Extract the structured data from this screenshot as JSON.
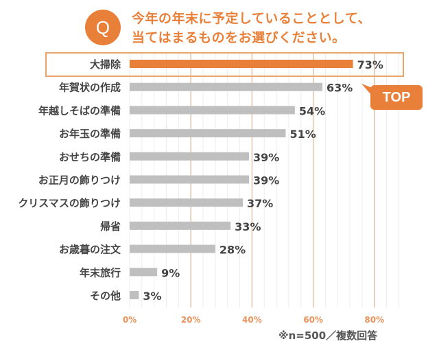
{
  "header": {
    "badge": "Q",
    "title_line1": "今年の年末に予定していることとして、",
    "title_line2": "当てはまるものをお選びください。"
  },
  "highlight": {
    "badge_label": "TOP",
    "category": "大掃除"
  },
  "footnote": "※n=500／複数回答",
  "colors": {
    "accent": "#e9803a",
    "bar": "#bfbfbf",
    "label": "#444444",
    "major_grid": "#d9b89a",
    "minor_grid": "#ececec"
  },
  "chart_data": {
    "type": "bar",
    "orientation": "horizontal",
    "title": "今年の年末に予定していることとして、当てはまるものをお選びください。",
    "categories": [
      "大掃除",
      "年賀状の作成",
      "年越しそばの準備",
      "お年玉の準備",
      "おせちの準備",
      "お正月の飾りつけ",
      "クリスマスの飾りつけ",
      "帰省",
      "お歳暮の注文",
      "年末旅行",
      "その他"
    ],
    "values": [
      73,
      63,
      54,
      51,
      39,
      39,
      37,
      33,
      28,
      9,
      3
    ],
    "value_labels": [
      "73%",
      "63%",
      "54%",
      "51%",
      "39%",
      "39%",
      "37%",
      "33%",
      "28%",
      "9%",
      "3%"
    ],
    "xlim": [
      0,
      80
    ],
    "xticks": [
      0,
      20,
      40,
      60,
      80
    ],
    "xtick_labels": [
      "0%",
      "20%",
      "40%",
      "60%",
      "80%"
    ],
    "minor_grid_step": 4,
    "grid": true,
    "highlighted_index": 0,
    "xlabel": "",
    "ylabel": ""
  }
}
